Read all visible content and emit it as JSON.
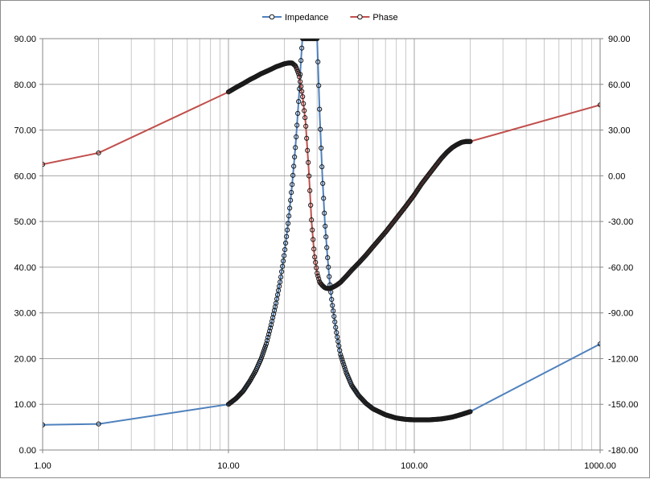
{
  "chart_data": {
    "type": "scatter",
    "title": "",
    "xlabel": "",
    "ylabel": "",
    "y2label": "",
    "x_scale": "log",
    "xlim": [
      1,
      1000
    ],
    "ylim": [
      0,
      90
    ],
    "y2lim": [
      -180,
      90
    ],
    "grid": true,
    "legend_position": "top",
    "x_ticks": [
      "1.00",
      "10.00",
      "100.00",
      "1000.00"
    ],
    "y_ticks": [
      "0.00",
      "10.00",
      "20.00",
      "30.00",
      "40.00",
      "50.00",
      "60.00",
      "70.00",
      "80.00",
      "90.00"
    ],
    "y2_ticks": [
      "-180.00",
      "-150.00",
      "-120.00",
      "-90.00",
      "-60.00",
      "-30.00",
      "0.00",
      "30.00",
      "60.00",
      "90.00"
    ],
    "series": [
      {
        "name": "Impedance",
        "axis": "left",
        "color": "#4f81bd",
        "x": [
          1,
          2,
          10,
          11,
          12,
          13,
          14,
          15,
          16,
          17,
          18,
          19,
          20,
          21,
          22,
          22.5,
          23,
          23.5,
          24,
          24.5,
          25,
          30,
          31,
          32,
          33,
          34,
          35,
          36,
          38,
          40,
          43,
          46,
          50,
          55,
          60,
          70,
          80,
          90,
          100,
          110,
          120,
          130,
          140,
          150,
          160,
          170,
          180,
          190,
          200,
          1000
        ],
        "y": [
          5.5,
          5.7,
          10.0,
          11.3,
          12.9,
          15.0,
          17.3,
          20.0,
          23.3,
          27.5,
          32.0,
          37.0,
          43.0,
          50.0,
          58.0,
          62.5,
          67.0,
          72.5,
          78.0,
          84.5,
          90.0,
          90.0,
          73.0,
          60.0,
          50.0,
          43.0,
          37.0,
          32.5,
          26.0,
          21.0,
          17.0,
          14.2,
          12.0,
          10.2,
          9.0,
          7.7,
          7.0,
          6.7,
          6.6,
          6.6,
          6.6,
          6.7,
          6.8,
          7.0,
          7.2,
          7.5,
          7.8,
          8.1,
          8.4,
          23.2
        ]
      },
      {
        "name": "Phase",
        "axis": "right",
        "color": "#c0504d",
        "x": [
          1,
          2,
          10,
          11,
          12,
          13,
          14,
          15,
          16,
          17,
          18,
          19,
          20,
          21,
          22,
          23,
          24,
          25,
          26,
          27,
          28,
          29,
          30,
          31,
          32,
          33,
          34,
          35,
          36,
          38,
          40,
          43,
          46,
          50,
          55,
          60,
          70,
          80,
          90,
          100,
          110,
          120,
          130,
          140,
          150,
          160,
          170,
          180,
          190,
          200,
          1000
        ],
        "y": [
          7.5,
          15.0,
          55.0,
          58.0,
          60.5,
          63.0,
          65.0,
          67.0,
          68.5,
          70.0,
          71.5,
          72.5,
          73.5,
          74.0,
          74.0,
          72.0,
          66.0,
          53.0,
          35.0,
          5.0,
          -30.0,
          -52.0,
          -64.0,
          -70.0,
          -72.0,
          -73.5,
          -74.0,
          -74.0,
          -73.5,
          -72.0,
          -70.0,
          -66.0,
          -62.0,
          -57.5,
          -52.0,
          -46.5,
          -37.0,
          -28.0,
          -20.0,
          -12.5,
          -5.0,
          1.0,
          6.5,
          11.5,
          15.5,
          18.5,
          20.5,
          22.0,
          22.5,
          22.5,
          46.5
        ]
      }
    ]
  }
}
